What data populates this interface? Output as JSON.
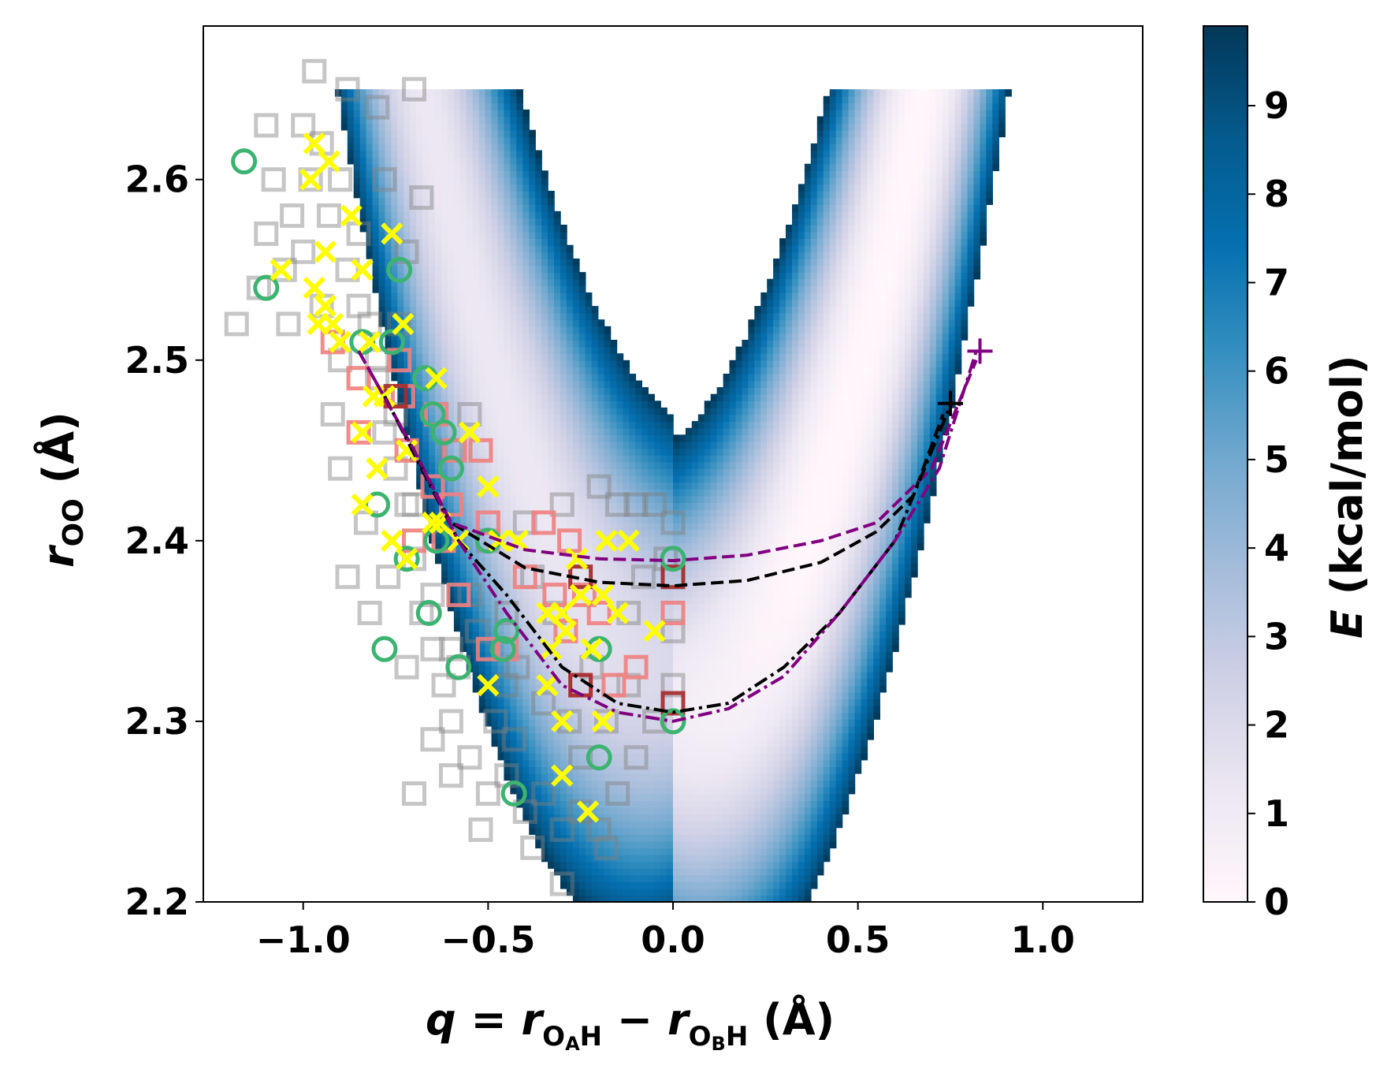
{
  "chart_data": {
    "type": "scatter",
    "title": "",
    "xlabel": {
      "q": "q",
      "eq": " = ",
      "r1": "r",
      "sub1": "O",
      "subsub1": "A",
      "sub1b": "H",
      "minus": " − ",
      "r2": "r",
      "sub2": "O",
      "subsub2": "B",
      "sub2b": "H",
      "unit": "  (Å)"
    },
    "ylabel": {
      "r": "r",
      "sub": "OO",
      "unit": "  (Å)"
    },
    "xlim": [
      -1.27,
      1.27
    ],
    "ylim": [
      2.2,
      2.685
    ],
    "xticks": [
      -1.0,
      -0.5,
      0.0,
      0.5,
      1.0
    ],
    "xtick_labels": [
      "−1.0",
      "−0.5",
      "0.0",
      "0.5",
      "1.0"
    ],
    "yticks": [
      2.2,
      2.3,
      2.4,
      2.5,
      2.6
    ],
    "ytick_labels": [
      "2.2",
      "2.3",
      "2.4",
      "2.5",
      "2.6"
    ],
    "colorbar": {
      "label_italic": "E",
      "label_rest": " (kcal/mol)",
      "range": [
        0,
        9.9
      ],
      "ticks": [
        0,
        1,
        2,
        3,
        4,
        5,
        6,
        7,
        8,
        9
      ],
      "tick_labels": [
        "0",
        "1",
        "2",
        "3",
        "4",
        "5",
        "6",
        "7",
        "8",
        "9"
      ],
      "colormap": "PuBu",
      "colors": [
        "#fff7fb",
        "#ece7f2",
        "#d0d1e6",
        "#a6bddb",
        "#74a9cf",
        "#3690c0",
        "#0570b0",
        "#045a8d",
        "#023858"
      ]
    },
    "potential_surface": {
      "description_values": "energy grows with distance from valley floor r = 2.305 + 0.75*q^2 (q>0 side), defined for r <= 2.65",
      "rmax": 2.65,
      "emax": 9.9
    },
    "series": [
      {
        "name": "gray squares (trajectory samples)",
        "marker": "square-open",
        "color": "#808080",
        "points": [
          [
            -1.0,
            2.63
          ],
          [
            -0.98,
            2.6
          ],
          [
            -0.95,
            2.62
          ],
          [
            -0.93,
            2.58
          ],
          [
            -0.9,
            2.6
          ],
          [
            -0.88,
            2.55
          ],
          [
            -1.03,
            2.58
          ],
          [
            -1.05,
            2.55
          ],
          [
            -0.85,
            2.57
          ],
          [
            -0.82,
            2.52
          ],
          [
            -0.8,
            2.49
          ],
          [
            -0.78,
            2.46
          ],
          [
            -0.75,
            2.44
          ],
          [
            -0.72,
            2.42
          ],
          [
            -0.7,
            2.39
          ],
          [
            -0.68,
            2.36
          ],
          [
            -0.65,
            2.34
          ],
          [
            -0.62,
            2.32
          ],
          [
            -0.6,
            2.3
          ],
          [
            -0.55,
            2.28
          ],
          [
            -0.5,
            2.26
          ],
          [
            -0.45,
            2.27
          ],
          [
            -0.4,
            2.25
          ],
          [
            -0.35,
            2.26
          ],
          [
            -0.3,
            2.24
          ],
          [
            -0.25,
            2.25
          ],
          [
            -0.2,
            2.24
          ],
          [
            -0.15,
            2.26
          ],
          [
            -0.1,
            2.28
          ],
          [
            -0.05,
            2.3
          ],
          [
            0.0,
            2.32
          ],
          [
            0.0,
            2.35
          ],
          [
            0.0,
            2.38
          ],
          [
            0.0,
            2.41
          ],
          [
            -0.05,
            2.42
          ],
          [
            -0.1,
            2.42
          ],
          [
            -0.15,
            2.42
          ],
          [
            -0.2,
            2.43
          ],
          [
            -0.3,
            2.42
          ],
          [
            -0.4,
            2.41
          ],
          [
            -0.5,
            2.4
          ],
          [
            -0.55,
            2.37
          ],
          [
            -0.6,
            2.34
          ],
          [
            -0.65,
            2.37
          ],
          [
            -0.7,
            2.42
          ],
          [
            -0.75,
            2.47
          ],
          [
            -0.8,
            2.5
          ],
          [
            -0.85,
            2.53
          ],
          [
            -0.9,
            2.5
          ],
          [
            -0.95,
            2.53
          ],
          [
            -1.0,
            2.56
          ],
          [
            -1.08,
            2.6
          ],
          [
            -1.1,
            2.63
          ],
          [
            -0.97,
            2.66
          ],
          [
            -0.88,
            2.65
          ],
          [
            -0.8,
            2.64
          ],
          [
            -0.7,
            2.65
          ],
          [
            -0.68,
            2.59
          ],
          [
            -0.72,
            2.56
          ],
          [
            -0.77,
            2.38
          ],
          [
            -0.82,
            2.36
          ],
          [
            -0.72,
            2.33
          ],
          [
            -0.6,
            2.27
          ],
          [
            -0.52,
            2.24
          ],
          [
            -0.43,
            2.29
          ],
          [
            -0.35,
            2.31
          ],
          [
            -0.28,
            2.3
          ],
          [
            -0.22,
            2.33
          ],
          [
            -0.12,
            2.36
          ],
          [
            -0.08,
            2.38
          ],
          [
            -0.02,
            2.39
          ],
          [
            -0.25,
            2.38
          ],
          [
            -0.32,
            2.36
          ],
          [
            -0.42,
            2.33
          ],
          [
            -0.48,
            2.3
          ],
          [
            -0.58,
            2.33
          ],
          [
            -0.65,
            2.29
          ],
          [
            -0.7,
            2.26
          ],
          [
            -0.3,
            2.21
          ],
          [
            -0.38,
            2.23
          ],
          [
            -0.18,
            2.23
          ],
          [
            -1.18,
            2.52
          ],
          [
            -1.12,
            2.54
          ],
          [
            -0.92,
            2.47
          ],
          [
            -0.6,
            2.45
          ],
          [
            -0.55,
            2.47
          ],
          [
            -0.9,
            2.44
          ],
          [
            -0.83,
            2.41
          ],
          [
            -0.88,
            2.38
          ],
          [
            -0.62,
            2.4
          ],
          [
            -0.53,
            2.35
          ],
          [
            -0.45,
            2.36
          ],
          [
            -0.38,
            2.38
          ],
          [
            -0.18,
            2.3
          ],
          [
            -0.12,
            2.32
          ],
          [
            -0.25,
            2.28
          ],
          [
            -0.45,
            2.32
          ],
          [
            -1.04,
            2.52
          ],
          [
            -1.1,
            2.57
          ],
          [
            -0.78,
            2.6
          ],
          [
            -0.74,
            2.52
          ]
        ]
      },
      {
        "name": "salmon squares",
        "marker": "square-open",
        "color": "#f08080",
        "points": [
          [
            -0.92,
            2.51
          ],
          [
            -0.85,
            2.49
          ],
          [
            -0.74,
            2.5
          ],
          [
            -0.73,
            2.48
          ],
          [
            -0.72,
            2.45
          ],
          [
            -0.64,
            2.47
          ],
          [
            -0.59,
            2.45
          ],
          [
            -0.52,
            2.45
          ],
          [
            -0.85,
            2.46
          ],
          [
            -0.65,
            2.43
          ],
          [
            -0.7,
            2.4
          ],
          [
            -0.62,
            2.4
          ],
          [
            -0.5,
            2.41
          ],
          [
            -0.4,
            2.38
          ],
          [
            -0.35,
            2.41
          ],
          [
            -0.28,
            2.4
          ],
          [
            -0.24,
            2.37
          ],
          [
            -0.32,
            2.37
          ],
          [
            -0.29,
            2.35
          ],
          [
            -0.2,
            2.36
          ],
          [
            -0.58,
            2.37
          ],
          [
            -0.5,
            2.34
          ],
          [
            -0.45,
            2.34
          ],
          [
            -0.1,
            2.33
          ],
          [
            -0.16,
            2.32
          ],
          [
            -0.25,
            2.32
          ],
          [
            0.0,
            2.36
          ],
          [
            -0.6,
            2.42
          ]
        ]
      },
      {
        "name": "dark red squares",
        "marker": "square-open",
        "color": "#a52a2a",
        "points": [
          [
            -0.75,
            2.48
          ],
          [
            -0.25,
            2.38
          ],
          [
            0.0,
            2.38
          ],
          [
            -0.25,
            2.32
          ],
          [
            0.0,
            2.31
          ]
        ]
      },
      {
        "name": "green circles",
        "marker": "circle-open",
        "color": "#3cb371",
        "points": [
          [
            -1.16,
            2.61
          ],
          [
            -1.1,
            2.54
          ],
          [
            -0.84,
            2.51
          ],
          [
            -0.74,
            2.55
          ],
          [
            -0.76,
            2.51
          ],
          [
            -0.67,
            2.49
          ],
          [
            -0.65,
            2.47
          ],
          [
            -0.62,
            2.46
          ],
          [
            -0.6,
            2.44
          ],
          [
            -0.8,
            2.42
          ],
          [
            -0.72,
            2.39
          ],
          [
            -0.64,
            2.4
          ],
          [
            -0.66,
            2.36
          ],
          [
            -0.58,
            2.33
          ],
          [
            -0.5,
            2.4
          ],
          [
            -0.45,
            2.35
          ],
          [
            -0.78,
            2.34
          ],
          [
            -0.43,
            2.26
          ],
          [
            -0.2,
            2.34
          ],
          [
            -0.2,
            2.28
          ],
          [
            0.0,
            2.39
          ],
          [
            0.0,
            2.3
          ],
          [
            -0.46,
            2.34
          ]
        ]
      },
      {
        "name": "yellow crosses",
        "marker": "x",
        "color": "#ffff00",
        "points": [
          [
            -0.97,
            2.62
          ],
          [
            -0.93,
            2.61
          ],
          [
            -0.98,
            2.6
          ],
          [
            -0.87,
            2.58
          ],
          [
            -0.76,
            2.57
          ],
          [
            -0.94,
            2.56
          ],
          [
            -1.06,
            2.55
          ],
          [
            -0.84,
            2.55
          ],
          [
            -0.97,
            2.54
          ],
          [
            -0.94,
            2.53
          ],
          [
            -0.96,
            2.52
          ],
          [
            -0.92,
            2.52
          ],
          [
            -0.73,
            2.52
          ],
          [
            -0.9,
            2.51
          ],
          [
            -0.82,
            2.51
          ],
          [
            -0.64,
            2.49
          ],
          [
            -0.81,
            2.48
          ],
          [
            -0.78,
            2.48
          ],
          [
            -0.55,
            2.46
          ],
          [
            -0.84,
            2.46
          ],
          [
            -0.8,
            2.44
          ],
          [
            -0.72,
            2.45
          ],
          [
            -0.65,
            2.41
          ],
          [
            -0.5,
            2.43
          ],
          [
            -0.84,
            2.42
          ],
          [
            -0.76,
            2.4
          ],
          [
            -0.72,
            2.39
          ],
          [
            -0.58,
            2.4
          ],
          [
            -0.42,
            2.4
          ],
          [
            -0.26,
            2.39
          ],
          [
            -0.18,
            2.4
          ],
          [
            -0.12,
            2.4
          ],
          [
            -0.15,
            2.36
          ],
          [
            -0.3,
            2.36
          ],
          [
            -0.25,
            2.37
          ],
          [
            -0.19,
            2.37
          ],
          [
            -0.34,
            2.36
          ],
          [
            -0.29,
            2.35
          ],
          [
            -0.33,
            2.34
          ],
          [
            -0.22,
            2.34
          ],
          [
            -0.05,
            2.35
          ],
          [
            -0.5,
            2.32
          ],
          [
            -0.34,
            2.32
          ],
          [
            -0.3,
            2.3
          ],
          [
            -0.19,
            2.3
          ],
          [
            -0.3,
            2.27
          ],
          [
            -0.23,
            2.25
          ],
          [
            -0.47,
            2.4
          ],
          [
            -0.63,
            2.41
          ]
        ]
      }
    ],
    "curves": [
      {
        "name": "black dashed",
        "color": "#000000",
        "dash": "dashed",
        "points": [
          [
            -0.78,
            2.48
          ],
          [
            -0.6,
            2.41
          ],
          [
            -0.4,
            2.385
          ],
          [
            -0.2,
            2.377
          ],
          [
            0.0,
            2.375
          ],
          [
            0.2,
            2.378
          ],
          [
            0.4,
            2.388
          ],
          [
            0.55,
            2.405
          ],
          [
            0.65,
            2.425
          ],
          [
            0.73,
            2.47
          ]
        ]
      },
      {
        "name": "purple dashed",
        "color": "#800080",
        "dash": "dashed",
        "points": [
          [
            -0.85,
            2.505
          ],
          [
            -0.7,
            2.45
          ],
          [
            -0.6,
            2.41
          ],
          [
            -0.4,
            2.395
          ],
          [
            -0.2,
            2.39
          ],
          [
            0.0,
            2.389
          ],
          [
            0.2,
            2.392
          ],
          [
            0.4,
            2.4
          ],
          [
            0.55,
            2.41
          ],
          [
            0.7,
            2.44
          ],
          [
            0.82,
            2.5
          ]
        ]
      },
      {
        "name": "black dash-dot",
        "color": "#000000",
        "dash": "dashdot",
        "points": [
          [
            -0.78,
            2.48
          ],
          [
            -0.68,
            2.44
          ],
          [
            -0.58,
            2.4
          ],
          [
            -0.45,
            2.37
          ],
          [
            -0.3,
            2.33
          ],
          [
            -0.15,
            2.31
          ],
          [
            0.0,
            2.305
          ],
          [
            0.15,
            2.31
          ],
          [
            0.3,
            2.33
          ],
          [
            0.45,
            2.36
          ],
          [
            0.6,
            2.4
          ],
          [
            0.75,
            2.475
          ]
        ]
      },
      {
        "name": "purple dash-dot",
        "color": "#800080",
        "dash": "dashdot",
        "points": [
          [
            -0.85,
            2.505
          ],
          [
            -0.7,
            2.45
          ],
          [
            -0.58,
            2.4
          ],
          [
            -0.45,
            2.36
          ],
          [
            -0.3,
            2.32
          ],
          [
            -0.15,
            2.305
          ],
          [
            0.0,
            2.3
          ],
          [
            0.15,
            2.307
          ],
          [
            0.3,
            2.325
          ],
          [
            0.45,
            2.36
          ],
          [
            0.6,
            2.4
          ],
          [
            0.72,
            2.44
          ],
          [
            0.82,
            2.505
          ]
        ]
      }
    ],
    "endpoints": [
      {
        "name": "black plus",
        "color": "#000000",
        "x": 0.75,
        "y": 2.476
      },
      {
        "name": "purple plus",
        "color": "#800080",
        "x": 0.83,
        "y": 2.505
      }
    ]
  }
}
